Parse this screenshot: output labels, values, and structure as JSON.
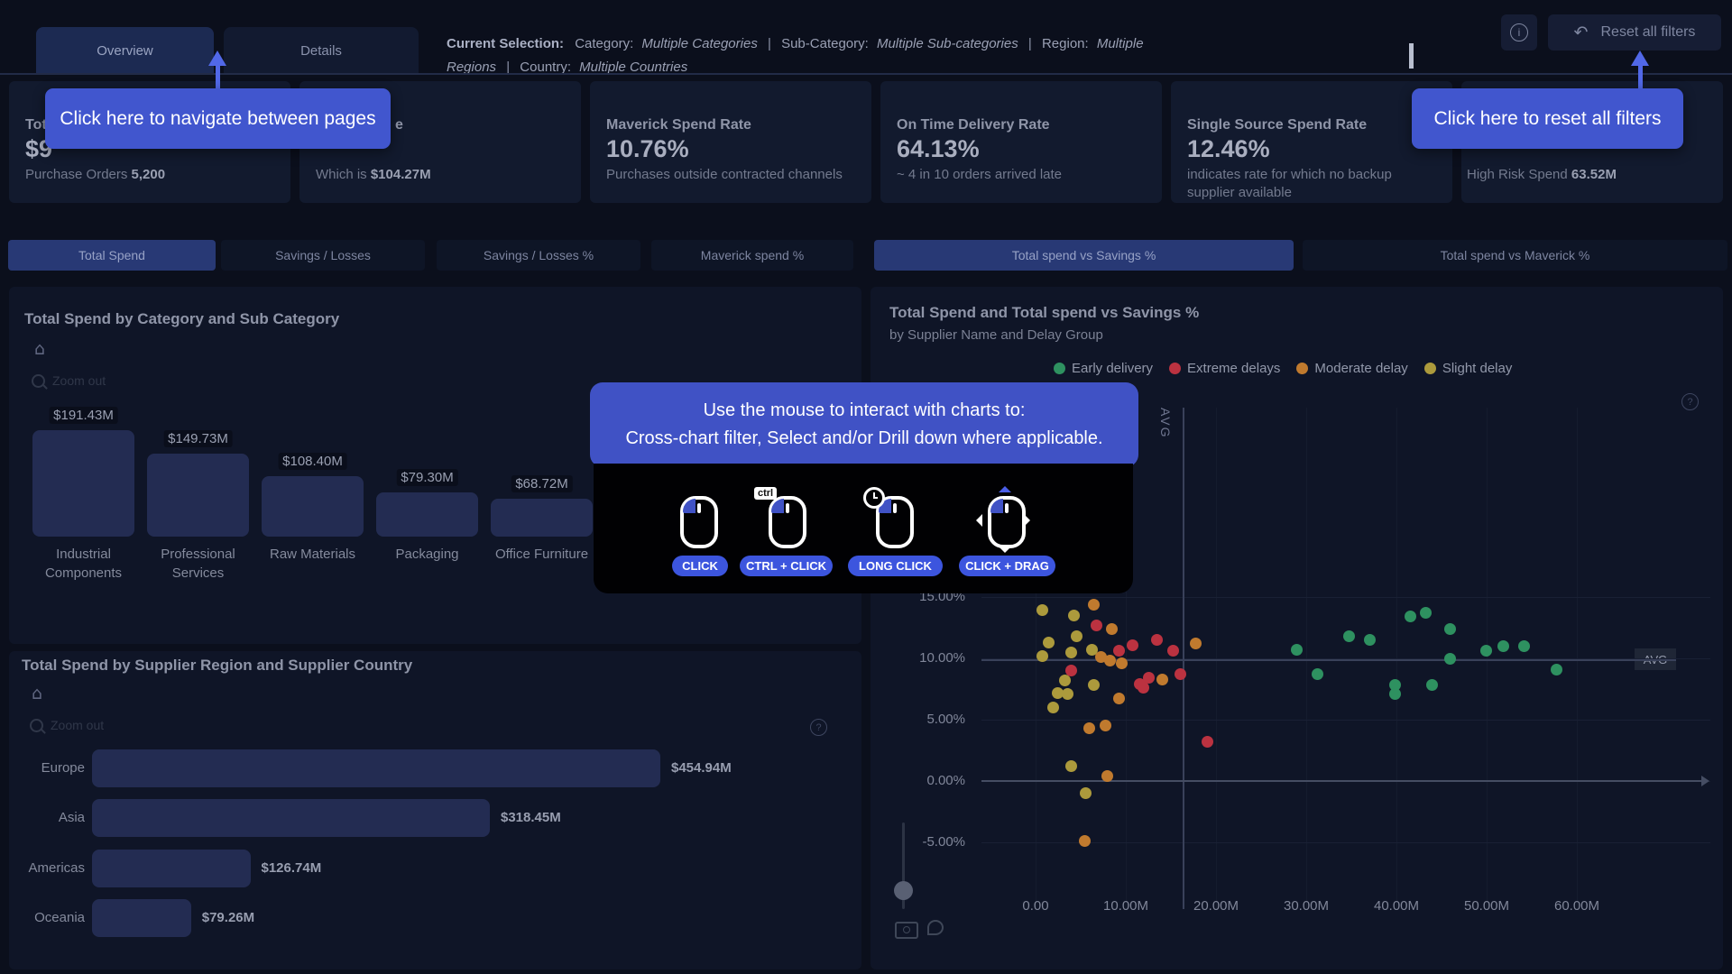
{
  "header": {
    "tabs": [
      {
        "label": "Overview",
        "selected": true
      },
      {
        "label": "Details",
        "selected": false
      }
    ],
    "selection": {
      "label": "Current Selection:",
      "category_key": "Category:",
      "category_value": "Multiple Categories",
      "subcategory_key": "Sub-Category:",
      "subcategory_value": "Multiple Sub-categories",
      "region_key": "Region:",
      "region_value": "Multiple Regions",
      "country_key": "Country:",
      "country_value": "Multiple Countries",
      "separator": "|"
    },
    "reset_button_label": "Reset all filters"
  },
  "tooltips": {
    "navigate": "Click here to navigate between pages",
    "reset": "Click here to reset all filters"
  },
  "kpis": [
    {
      "title": "Tot",
      "value": "$9",
      "sub_prefix": "Purchase Orders ",
      "sub_bold": "5,200"
    },
    {
      "title": "e",
      "value": "",
      "sub_prefix": "Which is ",
      "sub_bold": "$104.27M"
    },
    {
      "title": "Maverick Spend Rate",
      "value": "10.76%",
      "sub_prefix": "Purchases outside contracted channels",
      "sub_bold": ""
    },
    {
      "title": "On Time Delivery Rate",
      "value": "64.13%",
      "sub_prefix": "~ 4 in 10 orders arrived late",
      "sub_bold": ""
    },
    {
      "title": "Single Source Spend Rate",
      "value": "12.46%",
      "sub_prefix": "indicates rate for which no backup supplier available",
      "sub_bold": ""
    },
    {
      "title": "",
      "value": "",
      "sub_prefix": "High Risk Spend ",
      "sub_bold": "63.52M"
    }
  ],
  "metric_tabs": {
    "left": [
      {
        "label": "Total Spend",
        "selected": true
      },
      {
        "label": "Savings / Losses",
        "selected": false
      },
      {
        "label": "Savings / Losses %",
        "selected": false
      },
      {
        "label": "Maverick spend %",
        "selected": false
      }
    ],
    "right": [
      {
        "label": "Total spend vs Savings %",
        "selected": true
      },
      {
        "label": "Total spend vs Maverick %",
        "selected": false
      }
    ]
  },
  "panels": {
    "drill_zoom_out_label": "Zoom out"
  },
  "overlay": {
    "line1": "Use the mouse to interact with charts to:",
    "line2": "Cross-chart filter, Select and/or Drill down where applicable.",
    "actions": [
      {
        "label": "CLICK",
        "badge": "none"
      },
      {
        "label": "CTRL + CLICK",
        "badge": "ctrl",
        "badge_text": "ctrl"
      },
      {
        "label": "LONG CLICK",
        "badge": "clock"
      },
      {
        "label": "CLICK + DRAG",
        "badge": "drag"
      }
    ]
  },
  "scatter_labels": {
    "avg_vertical": "AVG",
    "avg_horizontal": "AVG"
  },
  "chart_data": [
    {
      "type": "bar",
      "orientation": "vertical",
      "title": "Total Spend by Category and Sub Category",
      "categories": [
        "Industrial Components",
        "Professional Services",
        "Raw Materials",
        "Packaging",
        "Office Furniture"
      ],
      "values": [
        191.43,
        149.73,
        108.4,
        79.3,
        68.72
      ],
      "value_labels": [
        "$191.43M",
        "$149.73M",
        "$108.40M",
        "$79.30M",
        "$68.72M"
      ],
      "unit": "USD M",
      "ylim": [
        0,
        200
      ]
    },
    {
      "type": "bar",
      "orientation": "horizontal",
      "title": "Total Spend by Supplier Region and Supplier Country",
      "categories": [
        "Europe",
        "Asia",
        "Americas",
        "Oceania"
      ],
      "values": [
        454.94,
        318.45,
        126.74,
        79.26
      ],
      "value_labels": [
        "$454.94M",
        "$318.45M",
        "$126.74M",
        "$79.26M"
      ],
      "unit": "USD M",
      "xlim": [
        0,
        500
      ]
    },
    {
      "type": "scatter",
      "title": "Total Spend and Total spend vs Savings %",
      "subtitle": "by Supplier Name and Delay Group",
      "x_unit": "M",
      "y_unit": "%",
      "xlim": [
        0,
        65
      ],
      "ylim": [
        -7.5,
        16.5
      ],
      "x_ticks": [
        {
          "value": 0,
          "label": "0.00"
        },
        {
          "value": 10,
          "label": "10.00M"
        },
        {
          "value": 20,
          "label": "20.00M"
        },
        {
          "value": 30,
          "label": "30.00M"
        },
        {
          "value": 40,
          "label": "40.00M"
        },
        {
          "value": 50,
          "label": "50.00M"
        },
        {
          "value": 60,
          "label": "60.00M"
        }
      ],
      "y_ticks": [
        {
          "value": 15,
          "label": "15.00%"
        },
        {
          "value": 10,
          "label": "10.00%"
        },
        {
          "value": 5,
          "label": "5.00%"
        },
        {
          "value": 0,
          "label": "0.00%"
        },
        {
          "value": -5,
          "label": "-5.00%"
        }
      ],
      "avg_x": 16.3,
      "avg_y": 9.9,
      "legend_position": "top",
      "grid": true,
      "series": [
        {
          "name": "Early delivery",
          "color": "#2e9160",
          "points": [
            [
              28.9,
              10.7
            ],
            [
              34.7,
              11.8
            ],
            [
              37.0,
              11.5
            ],
            [
              31.2,
              8.7
            ],
            [
              41.5,
              13.4
            ],
            [
              43.2,
              13.7
            ],
            [
              45.9,
              12.4
            ],
            [
              45.9,
              10.0
            ],
            [
              49.9,
              10.6
            ],
            [
              51.8,
              11.0
            ],
            [
              54.1,
              11.0
            ],
            [
              57.7,
              9.1
            ],
            [
              39.8,
              7.8
            ],
            [
              39.8,
              7.1
            ],
            [
              43.9,
              7.8
            ]
          ]
        },
        {
          "name": "Extreme delays",
          "color": "#bb3240",
          "points": [
            [
              6.7,
              12.7
            ],
            [
              9.2,
              10.6
            ],
            [
              10.7,
              11.1
            ],
            [
              13.4,
              11.5
            ],
            [
              15.2,
              10.6
            ],
            [
              3.9,
              9.0
            ],
            [
              11.5,
              7.9
            ],
            [
              11.9,
              7.6
            ],
            [
              12.5,
              8.4
            ],
            [
              16.0,
              8.7
            ],
            [
              19.0,
              3.2
            ]
          ]
        },
        {
          "name": "Moderate delay",
          "color": "#c07a2e",
          "points": [
            [
              6.4,
              14.4
            ],
            [
              8.4,
              12.4
            ],
            [
              7.2,
              10.1
            ],
            [
              8.2,
              9.8
            ],
            [
              9.5,
              9.6
            ],
            [
              17.7,
              11.2
            ],
            [
              14.0,
              8.3
            ],
            [
              9.2,
              6.7
            ],
            [
              5.9,
              4.3
            ],
            [
              7.7,
              4.5
            ],
            [
              7.9,
              0.4
            ],
            [
              5.4,
              -4.9
            ]
          ]
        },
        {
          "name": "Slight delay",
          "color": "#ac9a3c",
          "points": [
            [
              0.7,
              13.9
            ],
            [
              4.2,
              13.5
            ],
            [
              4.5,
              11.8
            ],
            [
              1.4,
              11.3
            ],
            [
              3.9,
              10.5
            ],
            [
              0.7,
              10.2
            ],
            [
              6.2,
              10.7
            ],
            [
              3.2,
              8.2
            ],
            [
              6.4,
              7.8
            ],
            [
              2.4,
              7.2
            ],
            [
              3.5,
              7.1
            ],
            [
              1.9,
              6.0
            ],
            [
              3.9,
              1.2
            ],
            [
              5.5,
              -1.0
            ]
          ]
        }
      ]
    }
  ]
}
